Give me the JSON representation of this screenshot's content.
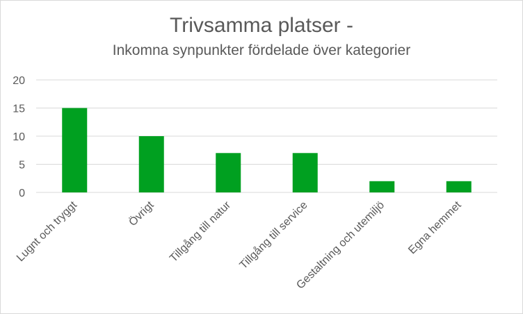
{
  "chart_data": {
    "type": "bar",
    "title": "Trivsamma platser -",
    "subtitle": "Inkomna synpunkter fördelade över kategorier",
    "categories": [
      "Lugnt och tryggt",
      "Övrigt",
      "Tillgång till natur",
      "Tillgång till service",
      "Gestaltning och utemiljö",
      "Egna hemmet"
    ],
    "values": [
      15,
      10,
      7,
      7,
      2,
      2
    ],
    "xlabel": "",
    "ylabel": "",
    "ylim": [
      0,
      20
    ],
    "yticks": [
      0,
      5,
      10,
      15,
      20
    ],
    "grid": true,
    "legend": "none",
    "bar_color": "#00a020",
    "grid_color": "#d9d9d9",
    "text_color": "#595959"
  }
}
